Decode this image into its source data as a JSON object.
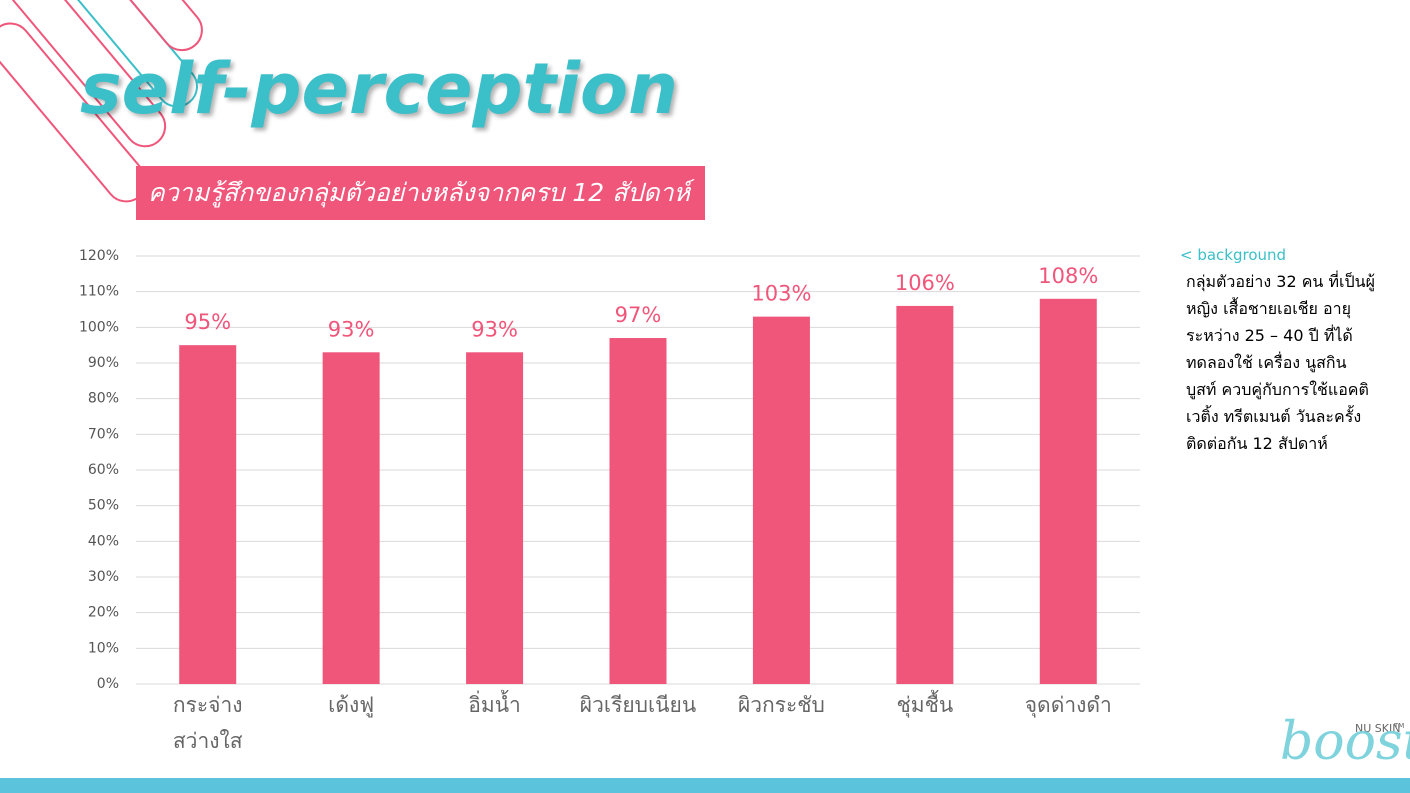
{
  "chart_data": {
    "type": "bar",
    "title": "self-perception",
    "subtitle": "ความรู้สึกของกลุ่มตัวอย่างหลังจากครบ 12 สัปดาห์",
    "categories": [
      "กระจ่าง\nสว่างใส",
      "เด้งฟู",
      "อิ่มน้ำ",
      "ผิวเรียบเนียน",
      "ผิวกระชับ",
      "ชุ่มชื้น",
      "จุดด่างดำ"
    ],
    "values": [
      95,
      93,
      93,
      97,
      103,
      106,
      108
    ],
    "value_labels": [
      "95%",
      "93%",
      "93%",
      "97%",
      "103%",
      "106%",
      "108%"
    ],
    "color": "#f0557a",
    "ylim": [
      0,
      120
    ],
    "yticks": [
      {
        "value": 0,
        "label": "0%"
      },
      {
        "value": 10,
        "label": "10%"
      },
      {
        "value": 20,
        "label": "20%"
      },
      {
        "value": 30,
        "label": "30%"
      },
      {
        "value": 40,
        "label": "40%"
      },
      {
        "value": 50,
        "label": "50%"
      },
      {
        "value": 60,
        "label": "60%"
      },
      {
        "value": 70,
        "label": "70%"
      },
      {
        "value": 80,
        "label": "80%"
      },
      {
        "value": 90,
        "label": "90%"
      },
      {
        "value": 100,
        "label": "100%"
      },
      {
        "value": 110,
        "label": "110%"
      },
      {
        "value": 120,
        "label": "120%"
      }
    ],
    "grid": true
  },
  "note": {
    "heading": "< background",
    "text": " กลุ่มตัวอย่าง 32 คน ที่เป็นผู้หญิง เสื้อชายเอเชีย อายุระหว่าง 25 – 40 ปี ที่ได้ทดลองใช้ เครื่อง นูสกิน บูสท์ ควบคู่กับการใช้แอคติเวติ้ง ทรีตเมนต์ วันละครั้ง ติดต่อกัน 12 สัปดาห์"
  },
  "logo": {
    "brand": "NU SKIN",
    "name": "boost",
    "mark": "TM"
  }
}
